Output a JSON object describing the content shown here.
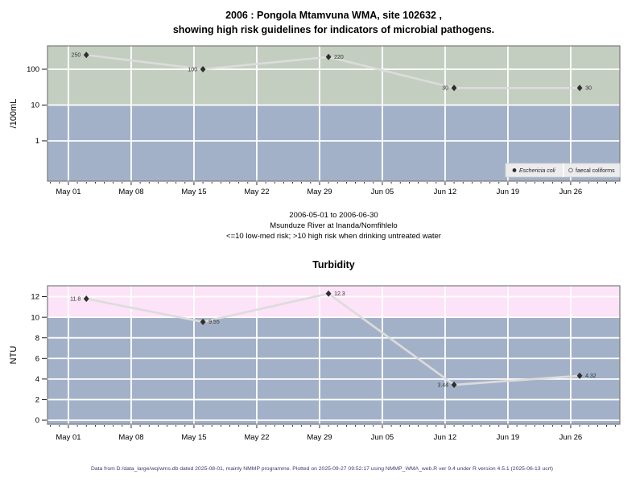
{
  "header": {
    "title_line1": "2006 : Pongola Mtamvuna WMA, site 102632 ,",
    "title_line2": "showing high risk guidelines for indicators of microbial pathogens."
  },
  "subtitle": {
    "line1": "2006-05-01 to 2006-06-30",
    "line2": "Msunduze River at Inanda/Nomfihlelo",
    "line3": "<=10 low-med risk; >10 high risk when drinking untreated water"
  },
  "footer": {
    "text": "Data from D:/data_large/wq/wms.db dated 2025-08-01, mainly NMMP programme. Plotted on 2025-09-27 09:52:17 using NMMP_WMA_web.R ver 9.4 under R version 4.5.1 (2025-06-13 ucrt)"
  },
  "colors": {
    "zone_low": "#a3b1c8",
    "line": "#dcdcdc",
    "marker": "#2e2e2e",
    "plot_border": "#7a7a7a",
    "gridline": "#ffffff",
    "tick": "#000000",
    "point_label": "#333333",
    "legend_fill": "#ececec",
    "legend_border": "#cfcfcf",
    "footer_text": "#3c3c6e"
  },
  "chart_data": [
    {
      "id": "microbial",
      "type": "line",
      "title": "",
      "ylabel": "/100mL",
      "yscale": "log",
      "yticks": [
        1,
        10,
        100
      ],
      "ylim": [
        0.075,
        449
      ],
      "threshold": 10,
      "zone_above_color": "#c4cec0",
      "zone_below_color": "#a3b1c8",
      "xlim_days": [
        -2.33,
        61.48
      ],
      "x_week_days": [
        0,
        7,
        14,
        21,
        28,
        35,
        42,
        49,
        56
      ],
      "x_tick_labels": [
        "May 01",
        "May 08",
        "May 15",
        "May 22",
        "May 29",
        "Jun 05",
        "Jun 12",
        "Jun 19",
        "Jun 26"
      ],
      "series": [
        {
          "name": "Eschericia coli",
          "marker": "filled-diamond",
          "points": [
            {
              "day": 2,
              "value": 250,
              "label": "250",
              "label_side": "left"
            },
            {
              "day": 15,
              "value": 100,
              "label": "100",
              "label_side": "left"
            },
            {
              "day": 29,
              "value": 220,
              "label": "220",
              "label_side": "right"
            },
            {
              "day": 43,
              "value": 30,
              "label": "30",
              "label_side": "left"
            },
            {
              "day": 57,
              "value": 30,
              "label": "30",
              "label_side": "right"
            }
          ]
        },
        {
          "name": "faecal coliforms",
          "marker": "open-circle",
          "points": []
        }
      ],
      "legend": [
        {
          "label": "Eschericia coli",
          "marker": "filled-circle",
          "italic": true
        },
        {
          "label": "faecal coliforms",
          "marker": "open-circle",
          "italic": false
        }
      ]
    },
    {
      "id": "turbidity",
      "type": "line",
      "title": "Turbidity",
      "ylabel": "NTU",
      "yscale": "linear",
      "yticks": [
        0,
        2,
        4,
        6,
        8,
        10,
        12
      ],
      "ylim": [
        -0.39,
        13.06
      ],
      "threshold": 10,
      "zone_above_color": "#fce3f7",
      "zone_below_color": "#a3b1c8",
      "xlim_days": [
        -2.33,
        61.48
      ],
      "x_week_days": [
        0,
        7,
        14,
        21,
        28,
        35,
        42,
        49,
        56
      ],
      "x_tick_labels": [
        "May 01",
        "May 08",
        "May 15",
        "May 22",
        "May 29",
        "Jun 05",
        "Jun 12",
        "Jun 19",
        "Jun 26"
      ],
      "series": [
        {
          "name": "Turbidity",
          "marker": "filled-diamond",
          "points": [
            {
              "day": 2,
              "value": 11.8,
              "label": "11.8",
              "label_side": "left"
            },
            {
              "day": 15,
              "value": 9.55,
              "label": "9.55",
              "label_side": "right"
            },
            {
              "day": 29,
              "value": 12.3,
              "label": "12.3",
              "label_side": "right"
            },
            {
              "day": 43,
              "value": 3.44,
              "label": "3.44",
              "label_side": "left"
            },
            {
              "day": 57,
              "value": 4.32,
              "label": "4.32",
              "label_side": "right"
            }
          ]
        }
      ],
      "legend": null
    }
  ]
}
